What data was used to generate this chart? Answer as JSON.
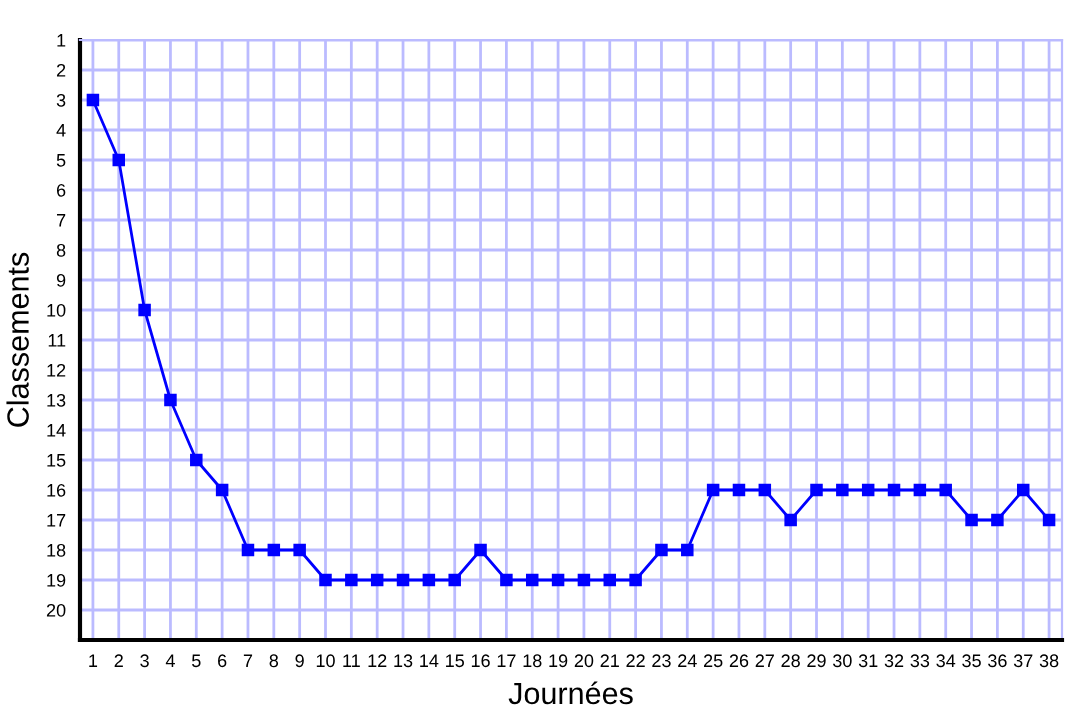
{
  "chart_data": {
    "type": "line",
    "xlabel": "Journées",
    "ylabel": "Classements",
    "x": [
      1,
      2,
      3,
      4,
      5,
      6,
      7,
      8,
      9,
      10,
      11,
      12,
      13,
      14,
      15,
      16,
      17,
      18,
      19,
      20,
      21,
      22,
      23,
      24,
      25,
      26,
      27,
      28,
      29,
      30,
      31,
      32,
      33,
      34,
      35,
      36,
      37,
      38
    ],
    "series": [
      {
        "color": "#0000ff",
        "values": [
          3,
          5,
          10,
          13,
          15,
          16,
          18,
          18,
          18,
          19,
          19,
          19,
          19,
          19,
          19,
          18,
          19,
          19,
          19,
          19,
          19,
          19,
          18,
          18,
          16,
          16,
          16,
          17,
          16,
          16,
          16,
          16,
          16,
          16,
          17,
          17,
          16,
          17
        ]
      }
    ],
    "xlim": [
      0.5,
      38.5
    ],
    "ylim": [
      21,
      1
    ],
    "xticks": [
      1,
      2,
      3,
      4,
      5,
      6,
      7,
      8,
      9,
      10,
      11,
      12,
      13,
      14,
      15,
      16,
      17,
      18,
      19,
      20,
      21,
      22,
      23,
      24,
      25,
      26,
      27,
      28,
      29,
      30,
      31,
      32,
      33,
      34,
      35,
      36,
      37,
      38
    ],
    "yticks": [
      1,
      2,
      3,
      4,
      5,
      6,
      7,
      8,
      9,
      10,
      11,
      12,
      13,
      14,
      15,
      16,
      17,
      18,
      19,
      20
    ],
    "grid": true,
    "marker": "square",
    "line_style": "solid"
  }
}
